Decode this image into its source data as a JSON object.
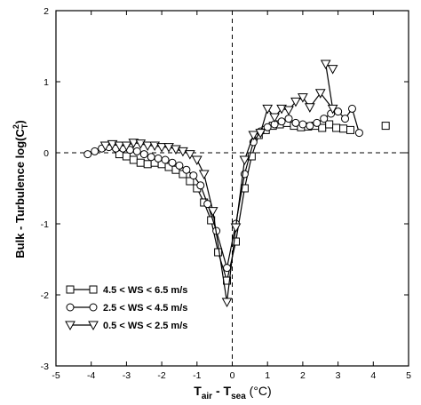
{
  "chart_data": {
    "type": "line",
    "title": "",
    "xlabel": {
      "main": "T",
      "sub1": "air",
      "sep": " - T",
      "sub2": "sea",
      "unit": " (°C)"
    },
    "ylabel": {
      "main": "Bulk - Turbulence log(C",
      "sup": "2",
      "sub": "T",
      "close": ")"
    },
    "xlim": [
      -5,
      5
    ],
    "ylim": [
      -3,
      2
    ],
    "x_ticks": [
      -5,
      -4,
      -3,
      -2,
      -1,
      0,
      1,
      2,
      3,
      4,
      5
    ],
    "y_ticks": [
      -3,
      -2,
      -1,
      0,
      1,
      2
    ],
    "grid": false,
    "reference_lines": {
      "x": 0,
      "y": 0,
      "style": "dashed"
    },
    "legend_position": "bottom-left",
    "series": [
      {
        "name": "4.5 < WS < 6.5 m/s",
        "marker": "square",
        "points": [
          [
            -3.2,
            -0.02
          ],
          [
            -3.0,
            -0.05
          ],
          [
            -2.8,
            -0.1
          ],
          [
            -2.6,
            -0.14
          ],
          [
            -2.4,
            -0.16
          ],
          [
            -2.2,
            -0.14
          ],
          [
            -2.0,
            -0.16
          ],
          [
            -1.8,
            -0.2
          ],
          [
            -1.6,
            -0.24
          ],
          [
            -1.4,
            -0.3
          ],
          [
            -1.2,
            -0.4
          ],
          [
            -1.0,
            -0.5
          ],
          [
            -0.8,
            -0.7
          ],
          [
            -0.6,
            -0.95
          ],
          [
            -0.4,
            -1.4
          ],
          [
            -0.15,
            -1.8
          ],
          [
            0.1,
            -1.25
          ],
          [
            0.35,
            -0.5
          ],
          [
            0.55,
            -0.05
          ],
          [
            0.75,
            0.25
          ],
          [
            0.95,
            0.32
          ],
          [
            1.15,
            0.38
          ],
          [
            1.35,
            0.4
          ],
          [
            1.55,
            0.42
          ],
          [
            1.75,
            0.38
          ],
          [
            1.95,
            0.36
          ],
          [
            2.15,
            0.37
          ],
          [
            2.35,
            0.38
          ],
          [
            2.55,
            0.35
          ],
          [
            2.75,
            0.4
          ],
          [
            2.95,
            0.35
          ],
          [
            3.15,
            0.34
          ],
          [
            3.35,
            0.32
          ],
          [
            4.35,
            0.38
          ]
        ],
        "connected_count": 33
      },
      {
        "name": "2.5 < WS < 4.5 m/s",
        "marker": "circle",
        "points": [
          [
            -4.1,
            -0.02
          ],
          [
            -3.9,
            0.02
          ],
          [
            -3.7,
            0.06
          ],
          [
            -3.5,
            0.08
          ],
          [
            -3.3,
            0.06
          ],
          [
            -3.1,
            0.06
          ],
          [
            -2.9,
            0.04
          ],
          [
            -2.7,
            0.02
          ],
          [
            -2.5,
            -0.02
          ],
          [
            -2.3,
            -0.06
          ],
          [
            -2.1,
            -0.08
          ],
          [
            -1.9,
            -0.1
          ],
          [
            -1.7,
            -0.14
          ],
          [
            -1.5,
            -0.18
          ],
          [
            -1.3,
            -0.24
          ],
          [
            -1.1,
            -0.32
          ],
          [
            -0.9,
            -0.46
          ],
          [
            -0.7,
            -0.72
          ],
          [
            -0.45,
            -1.1
          ],
          [
            -0.15,
            -1.62
          ],
          [
            0.1,
            -1.0
          ],
          [
            0.35,
            -0.3
          ],
          [
            0.6,
            0.15
          ],
          [
            0.8,
            0.3
          ],
          [
            1.0,
            0.36
          ],
          [
            1.2,
            0.4
          ],
          [
            1.4,
            0.44
          ],
          [
            1.6,
            0.48
          ],
          [
            1.8,
            0.42
          ],
          [
            2.0,
            0.4
          ],
          [
            2.2,
            0.38
          ],
          [
            2.4,
            0.42
          ],
          [
            2.6,
            0.48
          ],
          [
            2.8,
            0.55
          ],
          [
            3.0,
            0.58
          ],
          [
            3.2,
            0.48
          ],
          [
            3.4,
            0.62
          ],
          [
            3.6,
            0.28
          ]
        ]
      },
      {
        "name": "0.5 < WS < 2.5 m/s",
        "marker": "triangle-down",
        "points": [
          [
            -3.6,
            0.1
          ],
          [
            -3.4,
            0.12
          ],
          [
            -3.2,
            0.1
          ],
          [
            -3.0,
            0.1
          ],
          [
            -2.8,
            0.14
          ],
          [
            -2.6,
            0.13
          ],
          [
            -2.4,
            0.1
          ],
          [
            -2.2,
            0.1
          ],
          [
            -2.0,
            0.08
          ],
          [
            -1.8,
            0.08
          ],
          [
            -1.6,
            0.05
          ],
          [
            -1.4,
            0.02
          ],
          [
            -1.2,
            -0.02
          ],
          [
            -1.0,
            -0.1
          ],
          [
            -0.8,
            -0.3
          ],
          [
            -0.55,
            -0.82
          ],
          [
            -0.15,
            -2.1
          ],
          [
            0.1,
            -1.05
          ],
          [
            0.35,
            -0.1
          ],
          [
            0.6,
            0.25
          ],
          [
            0.8,
            0.28
          ],
          [
            1.0,
            0.62
          ],
          [
            1.2,
            0.5
          ],
          [
            1.4,
            0.62
          ],
          [
            1.6,
            0.6
          ],
          [
            1.8,
            0.72
          ],
          [
            2.0,
            0.78
          ],
          [
            2.2,
            0.64
          ],
          [
            2.5,
            0.84
          ],
          [
            2.85,
            0.62
          ],
          [
            2.65,
            1.25
          ],
          [
            2.85,
            1.18
          ]
        ]
      }
    ]
  }
}
